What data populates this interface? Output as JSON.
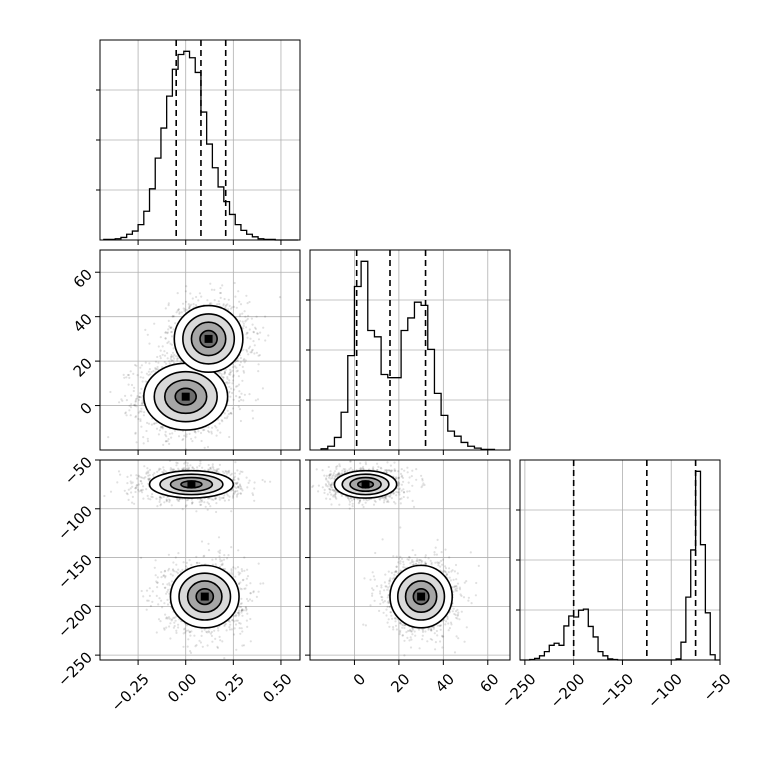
{
  "chart_data": {
    "type": "corner",
    "title": "",
    "grid": true,
    "parameters": [
      {
        "index": 0,
        "range": [
          -0.45,
          0.6
        ],
        "ticks": [
          -0.25,
          0.0,
          0.25,
          0.5
        ],
        "tick_labels": [
          "−0.25",
          "0.00",
          "0.25",
          "0.50"
        ],
        "quantiles": [
          -0.05,
          0.08,
          0.21
        ],
        "histogram": {
          "bin_edges": [
            -0.43,
            -0.4,
            -0.37,
            -0.34,
            -0.31,
            -0.28,
            -0.25,
            -0.22,
            -0.19,
            -0.16,
            -0.13,
            -0.1,
            -0.07,
            -0.04,
            -0.01,
            0.02,
            0.05,
            0.08,
            0.11,
            0.14,
            0.17,
            0.2,
            0.23,
            0.26,
            0.29,
            0.32,
            0.35,
            0.38,
            0.41,
            0.44,
            0.47,
            0.5,
            0.53,
            0.56,
            0.59
          ],
          "counts": [
            1,
            1,
            2,
            4,
            9,
            14,
            24,
            45,
            80,
            128,
            175,
            225,
            267,
            290,
            295,
            285,
            262,
            200,
            150,
            113,
            83,
            60,
            40,
            24,
            15,
            9,
            5,
            2,
            1,
            1,
            0,
            0,
            0,
            0
          ]
        }
      },
      {
        "index": 1,
        "range": [
          -20,
          70
        ],
        "ticks": [
          0,
          20,
          40,
          60
        ],
        "tick_labels": [
          "0",
          "20",
          "40",
          "60"
        ],
        "quantiles": [
          1,
          16,
          32
        ],
        "histogram": {
          "bin_edges": [
            -15,
            -12,
            -9,
            -6,
            -3,
            0,
            3,
            6,
            9,
            12,
            15,
            18,
            21,
            24,
            27,
            30,
            33,
            36,
            39,
            42,
            45,
            48,
            51,
            54,
            57,
            60,
            63
          ],
          "counts": [
            2,
            6,
            20,
            60,
            150,
            260,
            300,
            190,
            180,
            120,
            115,
            115,
            190,
            210,
            235,
            230,
            160,
            90,
            55,
            30,
            22,
            12,
            6,
            3,
            1,
            1
          ]
        }
      },
      {
        "index": 2,
        "range": [
          -255,
          -50
        ],
        "ticks": [
          -250,
          -200,
          -150,
          -100,
          -50
        ],
        "tick_labels": [
          "−250",
          "−200",
          "−150",
          "−100",
          "−50"
        ],
        "quantiles": [
          -200,
          -125,
          -75
        ],
        "histogram": {
          "bin_edges": [
            -255,
            -250,
            -245,
            -240,
            -235,
            -230,
            -225,
            -220,
            -215,
            -210,
            -205,
            -200,
            -195,
            -190,
            -185,
            -180,
            -175,
            -170,
            -165,
            -160,
            -155,
            -150,
            -145,
            -140,
            -135,
            -130,
            -125,
            -120,
            -115,
            -110,
            -105,
            -100,
            -95,
            -90,
            -85,
            -80,
            -75,
            -70,
            -65,
            -60,
            -55,
            -50
          ],
          "counts": [
            0,
            0,
            1,
            3,
            8,
            16,
            28,
            32,
            28,
            65,
            84,
            82,
            95,
            97,
            64,
            44,
            16,
            8,
            2,
            1,
            0,
            0,
            0,
            0,
            0,
            0,
            0,
            0,
            0,
            0,
            0,
            0,
            2,
            34,
            120,
            210,
            360,
            220,
            90,
            10,
            0
          ]
        }
      }
    ],
    "scatter_panels": [
      {
        "x_param": 0,
        "y_param": 1,
        "modes": [
          {
            "x_mean": 0.0,
            "y_mean": 4,
            "x_std": 0.11,
            "y_std": 7.5,
            "weight": 0.5
          },
          {
            "x_mean": 0.12,
            "y_mean": 30,
            "x_std": 0.09,
            "y_std": 7.5,
            "weight": 0.5
          }
        ]
      },
      {
        "x_param": 0,
        "y_param": 2,
        "modes": [
          {
            "x_mean": 0.03,
            "y_mean": -75,
            "x_std": 0.11,
            "y_std": 7,
            "weight": 0.5
          },
          {
            "x_mean": 0.1,
            "y_mean": -190,
            "x_std": 0.09,
            "y_std": 16,
            "weight": 0.5
          }
        ]
      },
      {
        "x_param": 1,
        "y_param": 2,
        "modes": [
          {
            "x_mean": 5,
            "y_mean": -75,
            "x_std": 7,
            "y_std": 7,
            "weight": 0.5
          },
          {
            "x_mean": 30,
            "y_mean": -190,
            "x_std": 7,
            "y_std": 16,
            "weight": 0.5
          }
        ]
      }
    ],
    "contour_levels_sigma": [
      0.5,
      1.0,
      1.5,
      2.0
    ]
  }
}
